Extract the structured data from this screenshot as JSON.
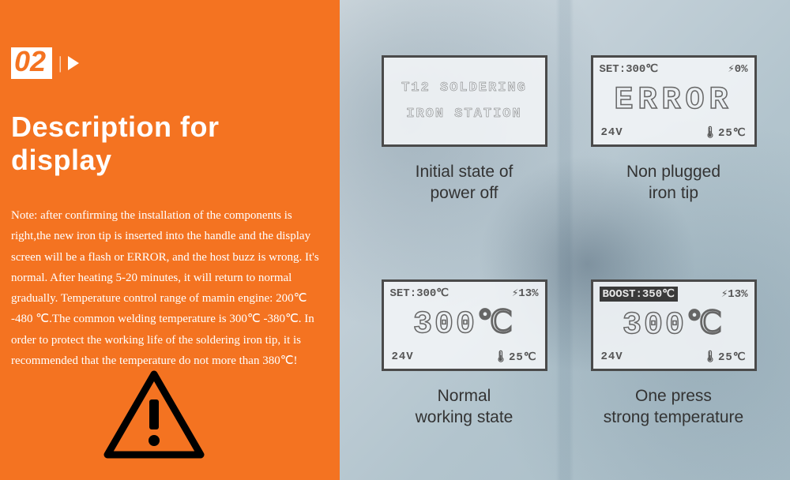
{
  "colors": {
    "accent": "#f47321",
    "text_light": "#ffffff",
    "lcd_border": "#4a4a4a",
    "lcd_text": "#555555",
    "caption": "#333333"
  },
  "left": {
    "section_number": "02",
    "heading": "Description for display",
    "body": "Note: after confirming the installation of the components is right,the new iron tip is inserted into the handle and the display screen will be a flash or ERROR, and the host buzz is wrong. It's normal. After heating 5-20 minutes, it will return to normal gradually. Temperature control range of mamin engine: 200℃ -480 ℃.The common welding temperature is 300℃ -380℃. In order to protect the working life of the soldering iron tip, it is recommended that the temperature do not more than 380℃!"
  },
  "displays": [
    {
      "type": "initial",
      "line1": "T12  SOLDERING",
      "line2": "IRON STATION",
      "caption": "Initial state of\npower off"
    },
    {
      "type": "error",
      "top_left": "SET:300℃",
      "top_right": "⚡0%",
      "big": "ERROR",
      "bottom_left": "24V",
      "bottom_right": "🌡25℃",
      "caption": "Non plugged\niron tip"
    },
    {
      "type": "normal",
      "top_left": "SET:300℃",
      "top_right": "⚡13%",
      "big": "300℃",
      "bottom_left": "24V",
      "bottom_right": "🌡25℃",
      "caption": "Normal\nworking state"
    },
    {
      "type": "boost",
      "top_left_inverted": "BOOST:350℃",
      "top_right": "⚡13%",
      "big": "300℃",
      "bottom_left": "24V",
      "bottom_right": "🌡25℃",
      "caption": "One press\nstrong temperature"
    }
  ]
}
